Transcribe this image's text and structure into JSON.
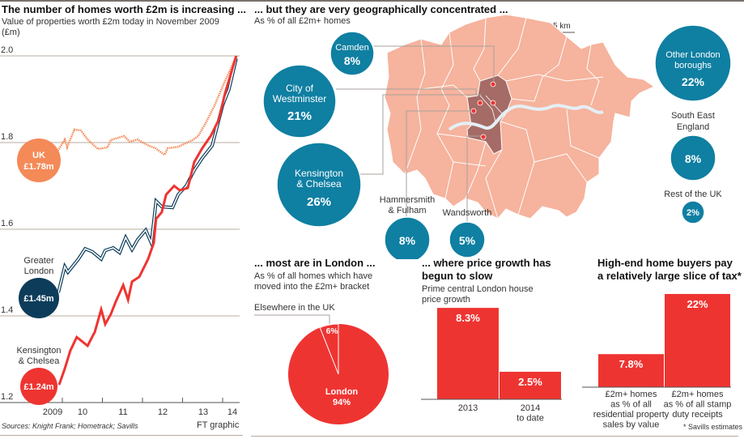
{
  "colors": {
    "uk": "#f48a58",
    "greater_london": "#0d3c5a",
    "kensington": "#ee3431",
    "bubble": "#0f7fa2",
    "map_fill": "#f6b39d",
    "map_core": "#a56b66",
    "river": "#e4eff6",
    "grid": "#b8aca0"
  },
  "panel1": {
    "title": "The number of homes worth £2m is increasing ...",
    "subtitle": "Value of properties worth £2m today in November 2009",
    "unit": "(£m)",
    "source": "Sources: Knight Frank; Hometrack; Savills",
    "credit": "FT graphic"
  },
  "panel2": {
    "title": "... but they are very geographically concentrated ...",
    "subtitle": "As % of all £2m+ homes",
    "scale": "5 km"
  },
  "panel3": {
    "title": "... most are in London ...",
    "subtitle1": "As % of all homes which have",
    "subtitle2": "moved into the £2m+ bracket"
  },
  "panel4": {
    "title1": "... where price growth has",
    "title2": "begun to slow",
    "subtitle1": "Prime central London house",
    "subtitle2": "price growth"
  },
  "panel5": {
    "title1": "High-end home buyers pay",
    "title2": "a relatively large slice of tax*",
    "footnote": "* Savills estimates"
  },
  "chart_data": [
    {
      "type": "line",
      "title": "The number of homes worth £2m is increasing ...",
      "ylabel": "(£m)",
      "ylim": [
        1.2,
        2.0
      ],
      "yticks": [
        "2.0",
        "1.8",
        "1.6",
        "1.4",
        "1.2"
      ],
      "xticks": [
        "2009",
        "10",
        "11",
        "12",
        "13",
        "14"
      ],
      "grid": "horizontal",
      "series": [
        {
          "name": "UK",
          "end_label": "£1.78m",
          "style": "dotted",
          "x": [
            2009.86,
            2010.06,
            2010.12,
            2010.3,
            2010.46,
            2010.63,
            2010.89,
            2011.13,
            2011.21,
            2011.54,
            2011.68,
            2011.88,
            2012.08,
            2012.32,
            2012.55,
            2012.63,
            2012.89,
            2013.25,
            2013.39,
            2013.6,
            2013.8,
            2014.06,
            2014.2,
            2014.34
          ],
          "y": [
            1.777,
            1.807,
            1.789,
            1.83,
            1.828,
            1.807,
            1.785,
            1.789,
            1.806,
            1.815,
            1.802,
            1.807,
            1.796,
            1.787,
            1.772,
            1.787,
            1.79,
            1.806,
            1.815,
            1.849,
            1.886,
            1.942,
            1.97,
            2.0
          ]
        },
        {
          "name": "Greater London",
          "end_label": "£1.45m",
          "style": "double",
          "x": [
            2009.9,
            2010.06,
            2010.14,
            2010.4,
            2010.57,
            2010.75,
            2010.97,
            2011.07,
            2011.27,
            2011.43,
            2011.58,
            2011.74,
            2011.88,
            2012.08,
            2012.22,
            2012.34,
            2012.48,
            2012.75,
            2012.89,
            2013.09,
            2013.29,
            2013.49,
            2013.74,
            2014.0,
            2014.16,
            2014.34
          ],
          "y": [
            1.454,
            1.514,
            1.501,
            1.531,
            1.555,
            1.548,
            1.531,
            1.551,
            1.557,
            1.546,
            1.581,
            1.553,
            1.576,
            1.598,
            1.568,
            1.665,
            1.652,
            1.65,
            1.68,
            1.7,
            1.736,
            1.764,
            1.793,
            1.886,
            1.923,
            1.994
          ]
        },
        {
          "name": "Kensington & Chelsea",
          "end_label": "£1.24m",
          "style": "solid",
          "x": [
            2009.92,
            2010.06,
            2010.2,
            2010.36,
            2010.63,
            2010.81,
            2010.97,
            2011.07,
            2011.21,
            2011.33,
            2011.52,
            2011.64,
            2011.74,
            2011.92,
            2012.14,
            2012.28,
            2012.34,
            2012.48,
            2012.59,
            2012.79,
            2012.93,
            2013.13,
            2013.29,
            2013.49,
            2013.7,
            2013.9,
            2014.06,
            2014.34
          ],
          "y": [
            1.241,
            1.278,
            1.32,
            1.351,
            1.331,
            1.363,
            1.415,
            1.381,
            1.404,
            1.432,
            1.471,
            1.437,
            1.479,
            1.49,
            1.531,
            1.568,
            1.624,
            1.639,
            1.68,
            1.7,
            1.69,
            1.695,
            1.755,
            1.787,
            1.815,
            1.852,
            1.914,
            2.0
          ]
        }
      ]
    },
    {
      "type": "bubble",
      "title": "... but they are very geographically concentrated ...",
      "unit": "%",
      "items": [
        {
          "label": "Camden",
          "value": "8%",
          "v": 8
        },
        {
          "label": "City of Westminster",
          "label1": "City of",
          "label2": "Westminster",
          "value": "21%",
          "v": 21
        },
        {
          "label": "Kensington & Chelsea",
          "label1": "Kensington",
          "label2": "& Chelsea",
          "value": "26%",
          "v": 26
        },
        {
          "label": "Hammersmith & Fulham",
          "label1": "Hammersmith",
          "label2": "& Fulham",
          "value": "8%",
          "v": 8
        },
        {
          "label": "Wandsworth",
          "value": "5%",
          "v": 5
        },
        {
          "label": "Other London boroughs",
          "label1": "Other London",
          "label2": "boroughs",
          "value": "22%",
          "v": 22
        },
        {
          "label": "South East England",
          "label1": "South East",
          "label2": "England",
          "value": "8%",
          "v": 8
        },
        {
          "label": "Rest of the UK",
          "value": "2%",
          "v": 2
        }
      ]
    },
    {
      "type": "pie",
      "slices": [
        {
          "name": "Elsewhere in the UK",
          "label": "6%",
          "value": 6
        },
        {
          "name": "London",
          "label": "94%",
          "value": 94
        }
      ]
    },
    {
      "type": "bar",
      "categories": [
        "2013",
        "2014 to date"
      ],
      "cat_lines": [
        [
          "2013"
        ],
        [
          "2014",
          "to date"
        ]
      ],
      "values": [
        8.3,
        2.5
      ],
      "labels": [
        "8.3%",
        "2.5%"
      ]
    },
    {
      "type": "bar",
      "categories": [
        "£2m+ homes as % of all residential property sales by value",
        "£2m+ homes as % of all stamp duty receipts"
      ],
      "cat_lines": [
        [
          "£2m+ homes",
          "as % of all",
          "residential property",
          "sales by value"
        ],
        [
          "£2m+ homes",
          "as % of all stamp",
          "duty receipts"
        ]
      ],
      "values": [
        7.8,
        22
      ],
      "labels": [
        "7.8%",
        "22%"
      ]
    }
  ]
}
